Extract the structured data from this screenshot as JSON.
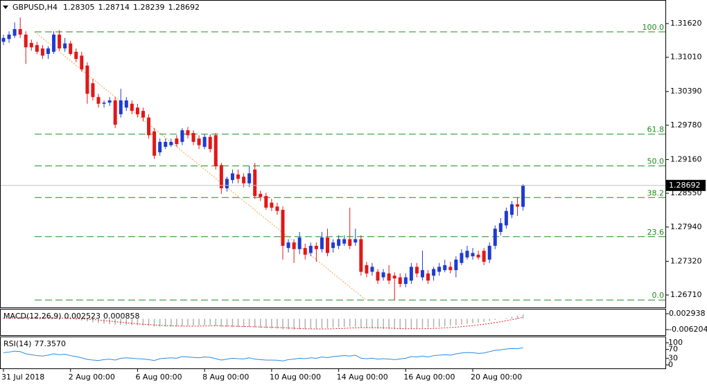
{
  "chart_data": {
    "type": "candlestick",
    "symbol": "GBPUSD,H4",
    "up_color": "#1f3bd0",
    "down_color": "#e01818",
    "categories": [
      "31 Jul 2018",
      null,
      null,
      null,
      null,
      null,
      null,
      null,
      null,
      null,
      null,
      null,
      "2 Aug 00:00",
      null,
      null,
      null,
      null,
      null,
      null,
      null,
      null,
      null,
      null,
      null,
      "6 Aug 00:00",
      null,
      null,
      null,
      null,
      null,
      null,
      null,
      null,
      null,
      null,
      null,
      "8 Aug 00:00",
      null,
      null,
      null,
      null,
      null,
      null,
      null,
      null,
      null,
      null,
      null,
      "10 Aug 00:00",
      null,
      null,
      null,
      null,
      null,
      null,
      null,
      null,
      null,
      null,
      null,
      "14 Aug 00:00",
      null,
      null,
      null,
      null,
      null,
      null,
      null,
      null,
      null,
      null,
      null,
      "16 Aug 00:00",
      null,
      null,
      null,
      null,
      null,
      null,
      null,
      null,
      null,
      null,
      null,
      "20 Aug 00:00",
      null,
      null,
      null,
      null,
      null,
      null,
      null,
      null,
      null
    ],
    "candles": [
      [
        1.3129,
        1.3142,
        1.3123,
        1.3136
      ],
      [
        1.3134,
        1.3148,
        1.3127,
        1.3142
      ],
      [
        1.314,
        1.3164,
        1.3136,
        1.3152
      ],
      [
        1.3152,
        1.3173,
        1.3136,
        1.3142
      ],
      [
        1.3142,
        1.3148,
        1.3089,
        1.3119
      ],
      [
        1.3127,
        1.3133,
        1.3113,
        1.3119
      ],
      [
        1.3123,
        1.3129,
        1.3107,
        1.3111
      ],
      [
        1.3117,
        1.3123,
        1.3098,
        1.3104
      ],
      [
        1.3107,
        1.3121,
        1.3098,
        1.3117
      ],
      [
        1.3111,
        1.3148,
        1.3107,
        1.3142
      ],
      [
        1.3142,
        1.315,
        1.3113,
        1.3117
      ],
      [
        1.3117,
        1.3136,
        1.3111,
        1.3126
      ],
      [
        1.3126,
        1.3131,
        1.3104,
        1.3107
      ],
      [
        1.3111,
        1.3117,
        1.3092,
        1.3098
      ],
      [
        1.3104,
        1.3111,
        1.3075,
        1.3079
      ],
      [
        1.3086,
        1.3092,
        1.3017,
        1.3035
      ],
      [
        1.3054,
        1.3062,
        1.3023,
        1.3029
      ],
      [
        1.3029,
        1.3035,
        1.301,
        1.3017
      ],
      [
        1.3017,
        1.3023,
        1.301,
        1.3019
      ],
      [
        1.3019,
        1.3029,
        1.3013,
        1.3023
      ],
      [
        1.3023,
        1.3029,
        1.2973,
        1.2979
      ],
      [
        1.2998,
        1.3044,
        1.2992,
        1.3023
      ],
      [
        1.301,
        1.3029,
        1.3004,
        1.3023
      ],
      [
        1.3017,
        1.3023,
        1.2998,
        1.3004
      ],
      [
        1.301,
        1.3017,
        1.2992,
        1.2998
      ],
      [
        1.3004,
        1.301,
        1.2985,
        1.2992
      ],
      [
        1.2992,
        1.2998,
        1.2954,
        1.296
      ],
      [
        1.2967,
        1.2973,
        1.2917,
        1.2923
      ],
      [
        1.2929,
        1.2954,
        1.2923,
        1.2948
      ],
      [
        1.2939,
        1.2954,
        1.2935,
        1.2948
      ],
      [
        1.2942,
        1.2954,
        1.2939,
        1.2948
      ],
      [
        1.2954,
        1.296,
        1.2939,
        1.2944
      ],
      [
        1.2948,
        1.2973,
        1.2942,
        1.2969
      ],
      [
        1.2969,
        1.2975,
        1.2954,
        1.296
      ],
      [
        1.2964,
        1.2969,
        1.2942,
        1.2948
      ],
      [
        1.2954,
        1.296,
        1.2935,
        1.2942
      ],
      [
        1.2939,
        1.2962,
        1.2935,
        1.2957
      ],
      [
        1.2957,
        1.2962,
        1.2929,
        1.2935
      ],
      [
        1.296,
        1.2964,
        1.2898,
        1.2904
      ],
      [
        1.2906,
        1.291,
        1.2854,
        1.2864
      ],
      [
        1.2864,
        1.2885,
        1.2858,
        1.2881
      ],
      [
        1.2879,
        1.2898,
        1.2873,
        1.2891
      ],
      [
        1.2889,
        1.2898,
        1.2873,
        1.2881
      ],
      [
        1.2885,
        1.2891,
        1.2866,
        1.2873
      ],
      [
        1.2873,
        1.2904,
        1.2866,
        1.2891
      ],
      [
        1.2898,
        1.291,
        1.2845,
        1.285
      ],
      [
        1.2854,
        1.286,
        1.2841,
        1.2848
      ],
      [
        1.285,
        1.2856,
        1.2825,
        1.2829
      ],
      [
        1.2838,
        1.2845,
        1.2823,
        1.2829
      ],
      [
        1.2831,
        1.2838,
        1.2816,
        1.2823
      ],
      [
        1.2825,
        1.2831,
        1.2735,
        1.276
      ],
      [
        1.2756,
        1.2772,
        1.2748,
        1.2766
      ],
      [
        1.2766,
        1.2772,
        1.2729,
        1.2754
      ],
      [
        1.2754,
        1.2785,
        1.2745,
        1.2775
      ],
      [
        1.2756,
        1.2764,
        1.2735,
        1.2744
      ],
      [
        1.2747,
        1.2766,
        1.2741,
        1.276
      ],
      [
        1.276,
        1.2766,
        1.2731,
        1.2754
      ],
      [
        1.2754,
        1.2785,
        1.2748,
        1.2775
      ],
      [
        1.2775,
        1.2791,
        1.2741,
        1.2747
      ],
      [
        1.2756,
        1.2772,
        1.2748,
        1.2766
      ],
      [
        1.276,
        1.2779,
        1.2754,
        1.2772
      ],
      [
        1.2764,
        1.2779,
        1.276,
        1.2772
      ],
      [
        1.2772,
        1.2829,
        1.2754,
        1.276
      ],
      [
        1.2766,
        1.2791,
        1.276,
        1.2772
      ],
      [
        1.2772,
        1.2779,
        1.2706,
        1.2713
      ],
      [
        1.2725,
        1.2731,
        1.2703,
        1.271
      ],
      [
        1.2713,
        1.2729,
        1.2706,
        1.2722
      ],
      [
        1.2713,
        1.2718,
        1.2691,
        1.2697
      ],
      [
        1.2703,
        1.2718,
        1.2697,
        1.2712
      ],
      [
        1.271,
        1.2725,
        1.2691,
        1.2697
      ],
      [
        1.2706,
        1.2712,
        1.2662,
        1.2701
      ],
      [
        1.2703,
        1.271,
        1.2685,
        1.2691
      ],
      [
        1.2691,
        1.271,
        1.2685,
        1.2703
      ],
      [
        1.2697,
        1.2729,
        1.2691,
        1.2722
      ],
      [
        1.2722,
        1.2729,
        1.2703,
        1.271
      ],
      [
        1.2703,
        1.2751,
        1.2697,
        1.2716
      ],
      [
        1.271,
        1.2716,
        1.2691,
        1.2697
      ],
      [
        1.2706,
        1.2722,
        1.2697,
        1.2718
      ],
      [
        1.2713,
        1.2729,
        1.2706,
        1.2722
      ],
      [
        1.2716,
        1.2735,
        1.2712,
        1.2725
      ],
      [
        1.2722,
        1.2731,
        1.271,
        1.2716
      ],
      [
        1.2716,
        1.2741,
        1.2703,
        1.2735
      ],
      [
        1.2729,
        1.2754,
        1.2725,
        1.2747
      ],
      [
        1.2739,
        1.276,
        1.2735,
        1.2751
      ],
      [
        1.2741,
        1.2756,
        1.2735,
        1.2747
      ],
      [
        1.2744,
        1.2751,
        1.2735,
        1.2739
      ],
      [
        1.2751,
        1.2756,
        1.2725,
        1.2731
      ],
      [
        1.2735,
        1.2766,
        1.2729,
        1.276
      ],
      [
        1.276,
        1.2797,
        1.2754,
        1.2791
      ],
      [
        1.2785,
        1.281,
        1.2779,
        1.2801
      ],
      [
        1.2797,
        1.2829,
        1.2791,
        1.2823
      ],
      [
        1.2816,
        1.2841,
        1.281,
        1.2835
      ],
      [
        1.2835,
        1.2848,
        1.2814,
        1.2831
      ],
      [
        1.28305,
        1.28714,
        1.28239,
        1.28692
      ]
    ],
    "ylim": [
      1.26485,
      1.32046
    ],
    "yticks": [
      {
        "value": 1.3162,
        "label": "1.31620"
      },
      {
        "value": 1.3101,
        "label": "1.31010"
      },
      {
        "value": 1.3039,
        "label": "1.30390"
      },
      {
        "value": 1.2978,
        "label": "1.29780"
      },
      {
        "value": 1.2916,
        "label": "1.29160"
      },
      {
        "value": 1.2855,
        "label": "1.28550"
      },
      {
        "value": 1.2794,
        "label": "1.27940"
      },
      {
        "value": 1.2732,
        "label": "1.27320"
      },
      {
        "value": 1.2671,
        "label": "1.26710"
      }
    ],
    "fibonacci": {
      "color": "#1e8a1e",
      "trend_color": "#f0a040",
      "levels": [
        {
          "label": "100.0",
          "price": 1.3147
        },
        {
          "label": "61.8",
          "price": 1.2962
        },
        {
          "label": "50.0",
          "price": 1.29045
        },
        {
          "label": "38.2",
          "price": 1.28473
        },
        {
          "label": "23.6",
          "price": 1.27765
        },
        {
          "label": "0.0",
          "price": 1.2662
        }
      ]
    },
    "indicators": [
      {
        "type": "macd",
        "name": "MACD(12,26,9)",
        "main_color": "#b0b0b0",
        "signal_color": "#e01818",
        "ylim": [
          -0.006204,
          0.002938
        ],
        "yticks": [
          0.002938,
          -0.006204
        ],
        "main": [
          0.0005,
          0.0006,
          0.0008,
          0.0009,
          0.0008,
          0.0006,
          0.0004,
          0.0002,
          0.0001,
          0.0001,
          0.0,
          -0.0001,
          -0.0003,
          -0.0006,
          -0.001,
          -0.0015,
          -0.002,
          -0.0025,
          -0.0028,
          -0.0031,
          -0.0034,
          -0.0035,
          -0.0036,
          -0.0037,
          -0.0038,
          -0.0039,
          -0.0041,
          -0.0044,
          -0.0045,
          -0.0045,
          -0.0045,
          -0.0044,
          -0.0042,
          -0.004,
          -0.0039,
          -0.0038,
          -0.0037,
          -0.0037,
          -0.004,
          -0.0045,
          -0.0047,
          -0.0048,
          -0.0048,
          -0.0048,
          -0.0047,
          -0.0049,
          -0.0051,
          -0.0053,
          -0.0055,
          -0.0056,
          -0.006,
          -0.0061,
          -0.0062,
          -0.0061,
          -0.006,
          -0.0058,
          -0.0057,
          -0.0055,
          -0.0053,
          -0.0051,
          -0.0049,
          -0.0047,
          -0.0045,
          -0.0046,
          -0.005,
          -0.0053,
          -0.0055,
          -0.0057,
          -0.0058,
          -0.0059,
          -0.006,
          -0.006,
          -0.0059,
          -0.0057,
          -0.0055,
          -0.0053,
          -0.0051,
          -0.0049,
          -0.0046,
          -0.0043,
          -0.004,
          -0.0037,
          -0.0033,
          -0.0029,
          -0.0025,
          -0.0021,
          -0.0017,
          -0.0012,
          -0.0006,
          -0.0001,
          0.0005,
          0.0012,
          0.0018,
          0.002523
        ],
        "signal": [
          0.0004,
          0.0004,
          0.0005,
          0.0005,
          0.0006,
          0.0006,
          0.0006,
          0.0006,
          0.0006,
          0.0005,
          0.0004,
          0.0004,
          0.0003,
          0.0002,
          0.0,
          -0.0002,
          -0.0004,
          -0.0007,
          -0.001,
          -0.0013,
          -0.0016,
          -0.002,
          -0.0023,
          -0.0026,
          -0.0029,
          -0.0031,
          -0.0033,
          -0.0035,
          -0.0037,
          -0.0039,
          -0.004,
          -0.0041,
          -0.0042,
          -0.0042,
          -0.0042,
          -0.0042,
          -0.0041,
          -0.0041,
          -0.004,
          -0.0041,
          -0.0041,
          -0.0042,
          -0.0043,
          -0.0044,
          -0.0045,
          -0.0046,
          -0.0047,
          -0.0048,
          -0.0049,
          -0.005,
          -0.0051,
          -0.0053,
          -0.0054,
          -0.0056,
          -0.0057,
          -0.0058,
          -0.0058,
          -0.0058,
          -0.0058,
          -0.0057,
          -0.0056,
          -0.0055,
          -0.0053,
          -0.0052,
          -0.0051,
          -0.0051,
          -0.0051,
          -0.0051,
          -0.0052,
          -0.0053,
          -0.0055,
          -0.0056,
          -0.0057,
          -0.0057,
          -0.0057,
          -0.0057,
          -0.0056,
          -0.0055,
          -0.0054,
          -0.0052,
          -0.005,
          -0.0048,
          -0.0045,
          -0.0042,
          -0.0039,
          -0.0035,
          -0.0031,
          -0.0027,
          -0.0022,
          -0.0017,
          -0.0011,
          -0.0005,
          0.0001,
          0.000858
        ]
      },
      {
        "type": "rsi",
        "name": "RSI(14)",
        "readout": "77.3570",
        "color": "#2a8ae0",
        "ylim": [
          0,
          100
        ],
        "yticks": [
          100,
          70,
          30,
          0
        ],
        "values": [
          55,
          58,
          62,
          60,
          50,
          46,
          42,
          40,
          44,
          50,
          46,
          48,
          42,
          38,
          32,
          25,
          22,
          20,
          24,
          26,
          22,
          30,
          32,
          30,
          28,
          27,
          24,
          20,
          28,
          30,
          32,
          30,
          38,
          36,
          34,
          32,
          36,
          34,
          28,
          22,
          26,
          30,
          28,
          27,
          32,
          26,
          24,
          22,
          22,
          21,
          18,
          24,
          26,
          30,
          28,
          32,
          30,
          36,
          33,
          38,
          40,
          42,
          40,
          44,
          30,
          28,
          30,
          26,
          28,
          26,
          24,
          27,
          30,
          38,
          36,
          40,
          36,
          42,
          44,
          46,
          44,
          50,
          54,
          56,
          55,
          52,
          54,
          60,
          66,
          68,
          72,
          74,
          73,
          77.357
        ]
      }
    ]
  }
}
